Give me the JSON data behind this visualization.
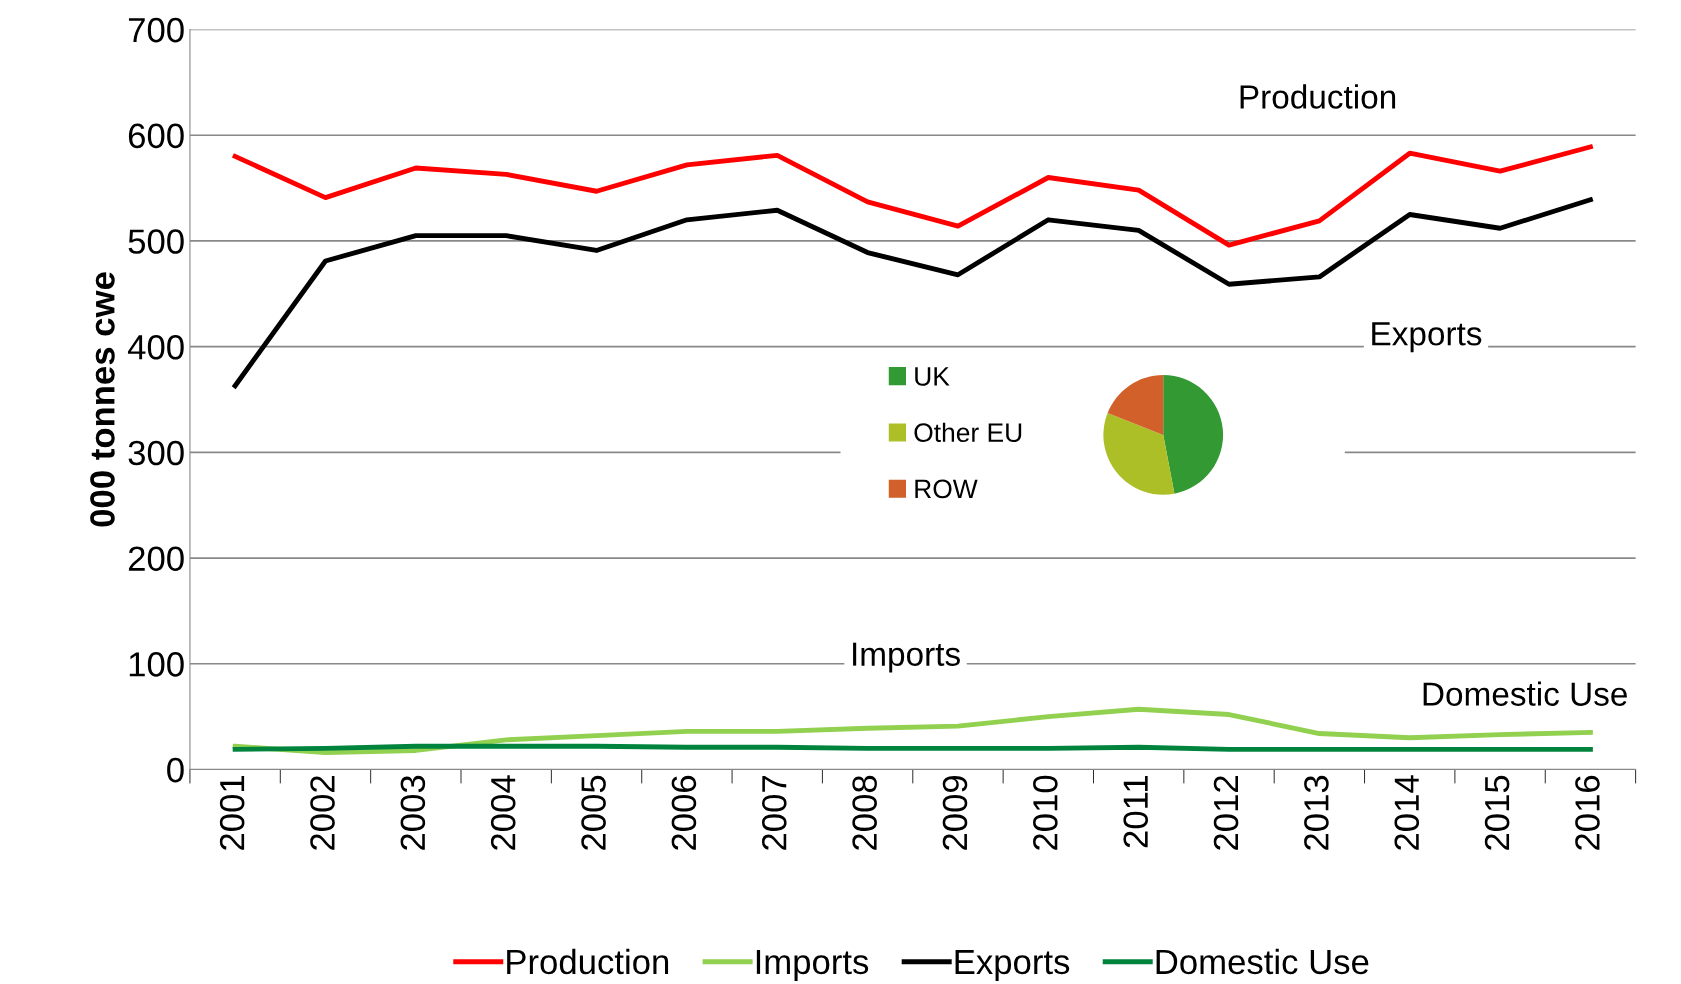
{
  "chart_data": [
    {
      "type": "line",
      "ylabel": "000 tonnes cwe",
      "categories": [
        "2001",
        "2002",
        "2003",
        "2004",
        "2005",
        "2006",
        "2007",
        "2008",
        "2009",
        "2010",
        "2011",
        "2012",
        "2013",
        "2014",
        "2015",
        "2016"
      ],
      "series": [
        {
          "name": "Production",
          "color": "#ff0000",
          "values": [
            580,
            541,
            569,
            563,
            547,
            572,
            581,
            537,
            514,
            560,
            548,
            496,
            519,
            583,
            566,
            589
          ]
        },
        {
          "name": "Imports",
          "color": "#92d050",
          "values": [
            22,
            16,
            18,
            28,
            32,
            36,
            36,
            39,
            41,
            50,
            57,
            52,
            34,
            30,
            33,
            35
          ]
        },
        {
          "name": "Exports",
          "color": "#000000",
          "values": [
            363,
            481,
            505,
            505,
            491,
            520,
            529,
            489,
            468,
            520,
            510,
            459,
            466,
            525,
            512,
            539
          ]
        },
        {
          "name": "Domestic Use",
          "color": "#00843d",
          "values": [
            19,
            20,
            22,
            22,
            22,
            21,
            21,
            20,
            20,
            20,
            21,
            19,
            19,
            19,
            19,
            19
          ]
        }
      ],
      "annotations": [
        "Production",
        "Exports",
        "Imports",
        "Domestic Use"
      ],
      "ylim": [
        0,
        700
      ],
      "yticks": [
        0,
        100,
        200,
        300,
        400,
        500,
        600,
        700
      ],
      "grid": "y",
      "legend": "bottom",
      "line_style": "solid",
      "marker": "none"
    },
    {
      "type": "pie",
      "categories": [
        "UK",
        "Other EU",
        "ROW"
      ],
      "values": [
        47,
        34,
        19
      ],
      "colors": [
        "#339933",
        "#adbf27",
        "#d2602a"
      ],
      "legend": "left"
    }
  ]
}
